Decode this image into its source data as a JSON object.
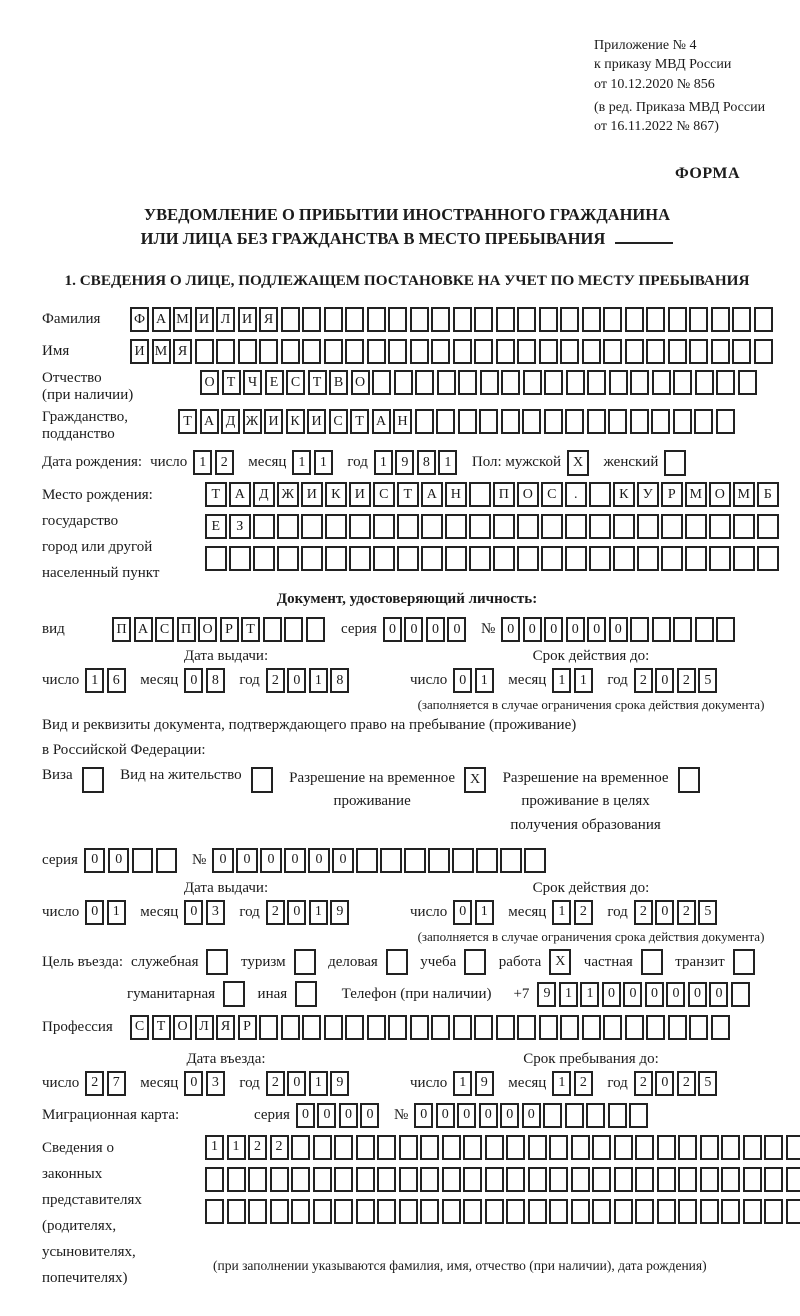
{
  "header": {
    "appendix_lines": [
      "Приложение № 4",
      "к приказу МВД России",
      "от 10.12.2020 № 856"
    ],
    "revision_lines": [
      "(в ред. Приказа МВД России",
      "от 16.11.2022 № 867)"
    ],
    "forma": "ФОРМА",
    "title_line1": "УВЕДОМЛЕНИЕ О ПРИБЫТИИ ИНОСТРАННОГО ГРАЖДАНИНА",
    "title_line2": "ИЛИ ЛИЦА БЕЗ ГРАЖДАНСТВА В МЕСТО ПРЕБЫВАНИЯ",
    "section1": "1. СВЕДЕНИЯ О ЛИЦЕ, ПОДЛЕЖАЩЕМ ПОСТАНОВКЕ НА УЧЕТ ПО МЕСТУ ПРЕБЫВАНИЯ"
  },
  "labels": {
    "day": "число",
    "month": "месяц",
    "year": "год",
    "series": "серия",
    "number": "№",
    "issue_date": "Дата выдачи:",
    "valid_until": "Срок действия до:",
    "valid_note": "(заполняется в случае ограничения срока действия документа)"
  },
  "person": {
    "surname": {
      "label": "Фамилия",
      "row": {
        "value": "ФАМИЛИЯ",
        "boxes": 30
      }
    },
    "given_name": {
      "label": "Имя",
      "row": {
        "value": "ИМЯ",
        "boxes": 30
      }
    },
    "patronymic": {
      "label": "Отчество",
      "label2": "(при наличии)",
      "row": {
        "value": "ОТЧЕСТВО",
        "boxes": 26
      }
    },
    "citizenship": {
      "label": "Гражданство,",
      "label2": "подданство",
      "row": {
        "value": "ТАДЖИКИСТАН",
        "boxes": 26
      }
    },
    "birth_date": {
      "label": "Дата рождения:",
      "day": "12",
      "month": "11",
      "year": "1981"
    },
    "sex": {
      "label": "Пол: мужской",
      "male": {
        "value": "X",
        "boxes": 1
      },
      "label_female": "женский",
      "female": {
        "value": "",
        "boxes": 1
      }
    },
    "birth_place": {
      "label_lines": [
        "Место рождения:",
        "государство",
        "город или другой",
        "населенный пункт"
      ],
      "row1": {
        "value": "ТАДЖИКИСТАН ПОС. КУРМОМБ",
        "boxes": 24
      },
      "row2": {
        "value": "ЕЗ",
        "boxes": 24
      },
      "row3": {
        "value": "",
        "boxes": 24
      }
    }
  },
  "identity_doc": {
    "header": "Документ, удостоверяющий личность:",
    "kind_label": "вид",
    "kind": {
      "value": "ПАСПОРТ",
      "boxes": 10
    },
    "series": {
      "value": "0000",
      "boxes": 4
    },
    "number": {
      "value": "000000",
      "boxes": 11
    },
    "issue": {
      "day": "16",
      "month": "08",
      "year": "2018"
    },
    "valid": {
      "day": "01",
      "month": "11",
      "year": "2025"
    }
  },
  "stay_doc": {
    "intro1": "Вид и реквизиты документа, подтверждающего право на пребывание (проживание)",
    "intro2": "в Российской Федерации:",
    "visa_label": "Виза",
    "visa": {
      "value": "",
      "boxes": 1
    },
    "residence_label": "Вид на жительство",
    "residence": {
      "value": "",
      "boxes": 1
    },
    "temp_l1": "Разрешение на временное",
    "temp_l2": "проживание",
    "temp": {
      "value": "X",
      "boxes": 1
    },
    "edu_l1": "Разрешение на временное",
    "edu_l2": "проживание в целях",
    "edu_l3": "получения образования",
    "edu": {
      "value": "",
      "boxes": 1
    },
    "series": {
      "value": "00",
      "boxes": 4
    },
    "number": {
      "value": "000000",
      "boxes": 14
    },
    "issue": {
      "day": "01",
      "month": "03",
      "year": "2019"
    },
    "valid": {
      "day": "01",
      "month": "12",
      "year": "2025"
    }
  },
  "visit": {
    "purpose_label": "Цель въезда:",
    "purposes_row1": [
      {
        "label": "служебная",
        "box": {
          "value": "",
          "boxes": 1
        }
      },
      {
        "label": "туризм",
        "box": {
          "value": "",
          "boxes": 1
        }
      },
      {
        "label": "деловая",
        "box": {
          "value": "",
          "boxes": 1
        }
      },
      {
        "label": "учеба",
        "box": {
          "value": "",
          "boxes": 1
        }
      },
      {
        "label": "работа",
        "box": {
          "value": "X",
          "boxes": 1
        }
      },
      {
        "label": "частная",
        "box": {
          "value": "",
          "boxes": 1
        }
      },
      {
        "label": "транзит",
        "box": {
          "value": "",
          "boxes": 1
        }
      }
    ],
    "purposes_row2": [
      {
        "label": "гуманитарная",
        "box": {
          "value": "",
          "boxes": 1
        }
      },
      {
        "label": "иная",
        "box": {
          "value": "",
          "boxes": 1
        }
      }
    ],
    "phone_label": "Телефон (при наличии)",
    "phone_prefix": "+7",
    "phone": {
      "value": "911000000",
      "boxes": 10
    },
    "profession_label": "Профессия",
    "profession": {
      "value": "СТОЛЯР",
      "boxes": 28
    },
    "entry_header": "Дата въезда:",
    "entry": {
      "day": "27",
      "month": "03",
      "year": "2019"
    },
    "stay_header": "Срок пребывания до:",
    "stay": {
      "day": "19",
      "month": "12",
      "year": "2025"
    },
    "migration_card_label": "Миграционная карта:",
    "mk_series": {
      "value": "0000",
      "boxes": 4
    },
    "mk_number": {
      "value": "000000",
      "boxes": 11
    }
  },
  "legal": {
    "label_lines": [
      "Сведения о",
      "законных",
      "представителях",
      "(родителях,",
      "усыновителях,",
      "попечителях)"
    ],
    "row1": {
      "value": "1122",
      "boxes": 29
    },
    "row2": {
      "value": "",
      "boxes": 29
    },
    "row3": {
      "value": "",
      "boxes": 29
    },
    "note": "(при заполнении указываются фамилия, имя, отчество (при наличии), дата рождения)"
  }
}
